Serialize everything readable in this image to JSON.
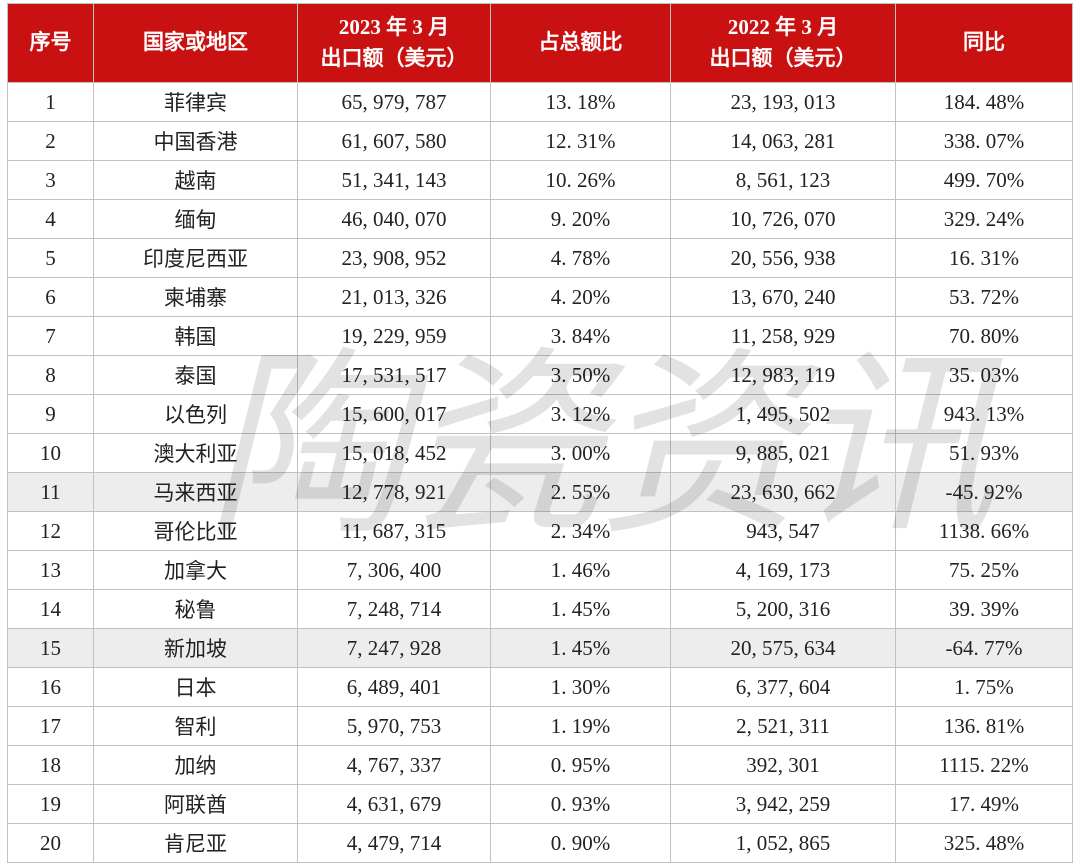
{
  "colors": {
    "header_bg": "#ca1111",
    "header_text": "#ffffff",
    "grid_line": "#c2c2c2",
    "highlight_row_bg": "#ededed",
    "body_text": "#222222",
    "watermark": "#e2e2e2"
  },
  "watermark": {
    "text": "陶瓷资讯"
  },
  "table": {
    "header": {
      "serial": "序号",
      "region": "国家或地区",
      "export_2023_line1": "2023 年 3 月",
      "export_2023_line2": "出口额（美元）",
      "share": "占总额比",
      "export_2022_line1": "2022 年 3 月",
      "export_2022_line2": "出口额（美元）",
      "yoy": "同比"
    },
    "rows": [
      {
        "no": "1",
        "region": "菲律宾",
        "export_2023": "65, 979, 787",
        "share": "13. 18%",
        "export_2022": "23, 193, 013",
        "yoy": "184. 48%",
        "highlight": false
      },
      {
        "no": "2",
        "region": "中国香港",
        "export_2023": "61, 607, 580",
        "share": "12. 31%",
        "export_2022": "14, 063, 281",
        "yoy": "338. 07%",
        "highlight": false
      },
      {
        "no": "3",
        "region": "越南",
        "export_2023": "51, 341, 143",
        "share": "10. 26%",
        "export_2022": "8, 561, 123",
        "yoy": "499. 70%",
        "highlight": false
      },
      {
        "no": "4",
        "region": "缅甸",
        "export_2023": "46, 040, 070",
        "share": "9. 20%",
        "export_2022": "10, 726, 070",
        "yoy": "329. 24%",
        "highlight": false
      },
      {
        "no": "5",
        "region": "印度尼西亚",
        "export_2023": "23, 908, 952",
        "share": "4. 78%",
        "export_2022": "20, 556, 938",
        "yoy": "16. 31%",
        "highlight": false
      },
      {
        "no": "6",
        "region": "柬埔寨",
        "export_2023": "21, 013, 326",
        "share": "4. 20%",
        "export_2022": "13, 670, 240",
        "yoy": "53. 72%",
        "highlight": false
      },
      {
        "no": "7",
        "region": "韩国",
        "export_2023": "19, 229, 959",
        "share": "3. 84%",
        "export_2022": "11, 258, 929",
        "yoy": "70. 80%",
        "highlight": false
      },
      {
        "no": "8",
        "region": "泰国",
        "export_2023": "17, 531, 517",
        "share": "3. 50%",
        "export_2022": "12, 983, 119",
        "yoy": "35. 03%",
        "highlight": false
      },
      {
        "no": "9",
        "region": "以色列",
        "export_2023": "15, 600, 017",
        "share": "3. 12%",
        "export_2022": "1, 495, 502",
        "yoy": "943. 13%",
        "highlight": false
      },
      {
        "no": "10",
        "region": "澳大利亚",
        "export_2023": "15, 018, 452",
        "share": "3. 00%",
        "export_2022": "9, 885, 021",
        "yoy": "51. 93%",
        "highlight": false
      },
      {
        "no": "11",
        "region": "马来西亚",
        "export_2023": "12, 778, 921",
        "share": "2. 55%",
        "export_2022": "23, 630, 662",
        "yoy": "-45. 92%",
        "highlight": true
      },
      {
        "no": "12",
        "region": "哥伦比亚",
        "export_2023": "11, 687, 315",
        "share": "2. 34%",
        "export_2022": "943, 547",
        "yoy": "1138. 66%",
        "highlight": false
      },
      {
        "no": "13",
        "region": "加拿大",
        "export_2023": "7, 306, 400",
        "share": "1. 46%",
        "export_2022": "4, 169, 173",
        "yoy": "75. 25%",
        "highlight": false
      },
      {
        "no": "14",
        "region": "秘鲁",
        "export_2023": "7, 248, 714",
        "share": "1. 45%",
        "export_2022": "5, 200, 316",
        "yoy": "39. 39%",
        "highlight": false
      },
      {
        "no": "15",
        "region": "新加坡",
        "export_2023": "7, 247, 928",
        "share": "1. 45%",
        "export_2022": "20, 575, 634",
        "yoy": "-64. 77%",
        "highlight": true
      },
      {
        "no": "16",
        "region": "日本",
        "export_2023": "6, 489, 401",
        "share": "1. 30%",
        "export_2022": "6, 377, 604",
        "yoy": "1. 75%",
        "highlight": false
      },
      {
        "no": "17",
        "region": "智利",
        "export_2023": "5, 970, 753",
        "share": "1. 19%",
        "export_2022": "2, 521, 311",
        "yoy": "136. 81%",
        "highlight": false
      },
      {
        "no": "18",
        "region": "加纳",
        "export_2023": "4, 767, 337",
        "share": "0. 95%",
        "export_2022": "392, 301",
        "yoy": "1115. 22%",
        "highlight": false
      },
      {
        "no": "19",
        "region": "阿联酋",
        "export_2023": "4, 631, 679",
        "share": "0. 93%",
        "export_2022": "3, 942, 259",
        "yoy": "17. 49%",
        "highlight": false
      },
      {
        "no": "20",
        "region": "肯尼亚",
        "export_2023": "4, 479, 714",
        "share": "0. 90%",
        "export_2022": "1, 052, 865",
        "yoy": "325. 48%",
        "highlight": false
      }
    ]
  }
}
